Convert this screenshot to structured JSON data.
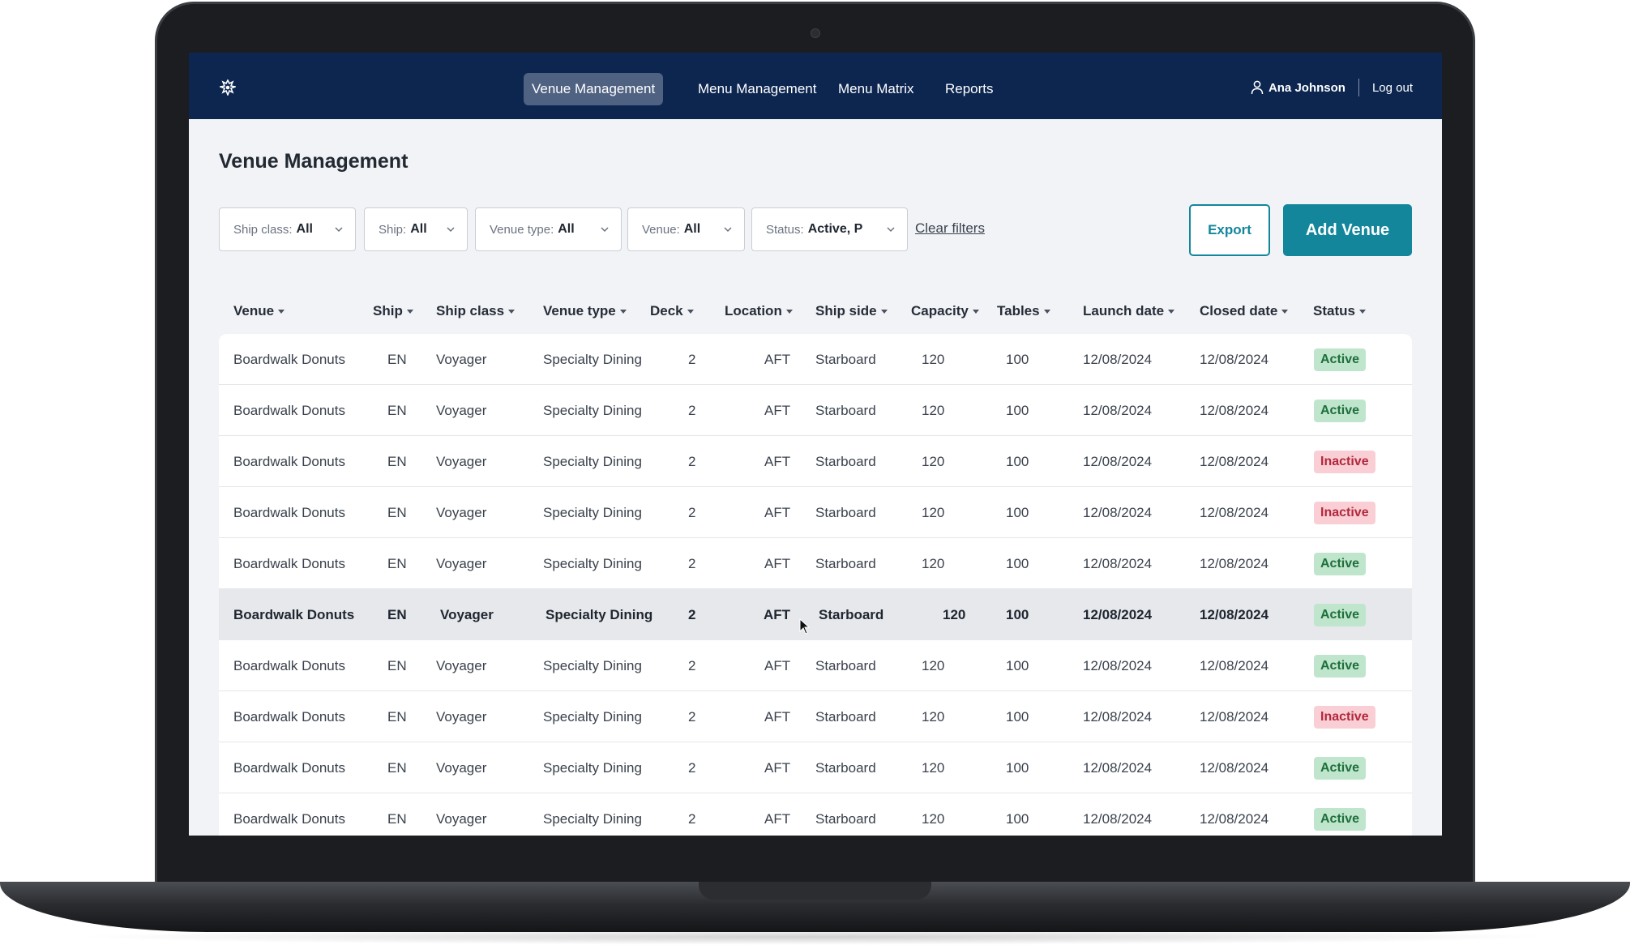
{
  "nav": {
    "items": [
      {
        "label": "Venue Management",
        "active": true
      },
      {
        "label": "Menu Management",
        "active": false
      },
      {
        "label": "Menu Matrix",
        "active": false
      },
      {
        "label": "Reports",
        "active": false
      }
    ],
    "user_name": "Ana Johnson",
    "logout_label": "Log out",
    "logo_icon": "ship-logo-icon"
  },
  "page": {
    "title": "Venue Management"
  },
  "filters": [
    {
      "label": "Ship class:",
      "value": "All"
    },
    {
      "label": "Ship:",
      "value": "All"
    },
    {
      "label": "Venue type:",
      "value": "All"
    },
    {
      "label": "Venue:",
      "value": "All"
    },
    {
      "label": "Status:",
      "value": "Active, P"
    }
  ],
  "clear_filters_label": "Clear filters",
  "actions": {
    "export_label": "Export",
    "add_label": "Add Venue"
  },
  "colors": {
    "navbar": "#0c2650",
    "accent": "#13869c",
    "active_badge_bg": "#bfe6cc",
    "inactive_badge_bg": "#f9cfd5"
  },
  "table": {
    "columns": [
      "Venue",
      "Ship",
      "Ship class",
      "Venue type",
      "Deck",
      "Location",
      "Ship side",
      "Capacity",
      "Tables",
      "Launch date",
      "Closed date",
      "Status"
    ],
    "rows": [
      {
        "venue": "Boardwalk Donuts",
        "ship": "EN",
        "ship_class": "Voyager",
        "venue_type": "Specialty Dining",
        "deck": "2",
        "location": "AFT",
        "ship_side": "Starboard",
        "capacity": "120",
        "tables": "100",
        "launch_date": "12/08/2024",
        "closed_date": "12/08/2024",
        "status": "Active"
      },
      {
        "venue": "Boardwalk Donuts",
        "ship": "EN",
        "ship_class": "Voyager",
        "venue_type": "Specialty Dining",
        "deck": "2",
        "location": "AFT",
        "ship_side": "Starboard",
        "capacity": "120",
        "tables": "100",
        "launch_date": "12/08/2024",
        "closed_date": "12/08/2024",
        "status": "Active"
      },
      {
        "venue": "Boardwalk Donuts",
        "ship": "EN",
        "ship_class": "Voyager",
        "venue_type": "Specialty Dining",
        "deck": "2",
        "location": "AFT",
        "ship_side": "Starboard",
        "capacity": "120",
        "tables": "100",
        "launch_date": "12/08/2024",
        "closed_date": "12/08/2024",
        "status": "Inactive"
      },
      {
        "venue": "Boardwalk Donuts",
        "ship": "EN",
        "ship_class": "Voyager",
        "venue_type": "Specialty Dining",
        "deck": "2",
        "location": "AFT",
        "ship_side": "Starboard",
        "capacity": "120",
        "tables": "100",
        "launch_date": "12/08/2024",
        "closed_date": "12/08/2024",
        "status": "Inactive"
      },
      {
        "venue": "Boardwalk Donuts",
        "ship": "EN",
        "ship_class": "Voyager",
        "venue_type": "Specialty Dining",
        "deck": "2",
        "location": "AFT",
        "ship_side": "Starboard",
        "capacity": "120",
        "tables": "100",
        "launch_date": "12/08/2024",
        "closed_date": "12/08/2024",
        "status": "Active"
      },
      {
        "venue": "Boardwalk Donuts",
        "ship": "EN",
        "ship_class": "Voyager",
        "venue_type": "Specialty Dining",
        "deck": "2",
        "location": "AFT",
        "ship_side": "Starboard",
        "capacity": "120",
        "tables": "100",
        "launch_date": "12/08/2024",
        "closed_date": "12/08/2024",
        "status": "Active",
        "hovered": true
      },
      {
        "venue": "Boardwalk Donuts",
        "ship": "EN",
        "ship_class": "Voyager",
        "venue_type": "Specialty Dining",
        "deck": "2",
        "location": "AFT",
        "ship_side": "Starboard",
        "capacity": "120",
        "tables": "100",
        "launch_date": "12/08/2024",
        "closed_date": "12/08/2024",
        "status": "Active"
      },
      {
        "venue": "Boardwalk Donuts",
        "ship": "EN",
        "ship_class": "Voyager",
        "venue_type": "Specialty Dining",
        "deck": "2",
        "location": "AFT",
        "ship_side": "Starboard",
        "capacity": "120",
        "tables": "100",
        "launch_date": "12/08/2024",
        "closed_date": "12/08/2024",
        "status": "Inactive"
      },
      {
        "venue": "Boardwalk Donuts",
        "ship": "EN",
        "ship_class": "Voyager",
        "venue_type": "Specialty Dining",
        "deck": "2",
        "location": "AFT",
        "ship_side": "Starboard",
        "capacity": "120",
        "tables": "100",
        "launch_date": "12/08/2024",
        "closed_date": "12/08/2024",
        "status": "Active"
      },
      {
        "venue": "Boardwalk Donuts",
        "ship": "EN",
        "ship_class": "Voyager",
        "venue_type": "Specialty Dining",
        "deck": "2",
        "location": "AFT",
        "ship_side": "Starboard",
        "capacity": "120",
        "tables": "100",
        "launch_date": "12/08/2024",
        "closed_date": "12/08/2024",
        "status": "Active"
      }
    ]
  }
}
